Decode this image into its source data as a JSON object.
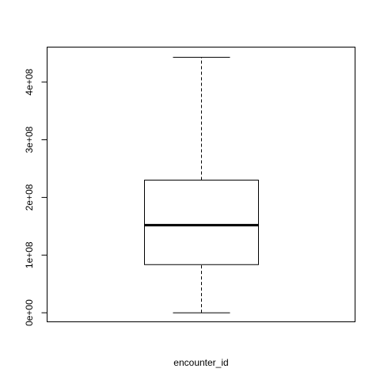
{
  "chart_data": {
    "type": "box",
    "xlabel": "encounter_id",
    "ylabel": "",
    "ylim": [
      -15000000,
      460000000
    ],
    "yticks": [
      0,
      100000000,
      200000000,
      300000000,
      400000000
    ],
    "ytick_labels": [
      "0e+00",
      "1e+08",
      "2e+08",
      "3e+08",
      "4e+08"
    ],
    "boxes": [
      {
        "name": "encounter_id",
        "whisker_low": 0,
        "q1": 83500000,
        "median": 152000000,
        "q3": 230000000,
        "whisker_high": 443000000
      }
    ],
    "grid": false,
    "legend": "none"
  }
}
